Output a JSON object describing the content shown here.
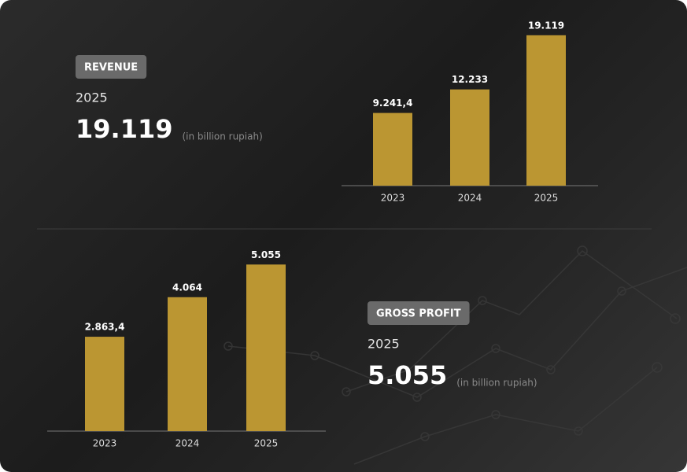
{
  "chart_data": [
    {
      "type": "bar",
      "title": "REVENUE",
      "unit": "(in billion rupiah)",
      "categories": [
        "2023",
        "2024",
        "2025"
      ],
      "values": [
        9241.4,
        12233,
        19119
      ],
      "value_labels": [
        "9.241,4",
        "12.233",
        "19.119"
      ],
      "color": "#bb9632",
      "ylim": [
        0,
        20000
      ]
    },
    {
      "type": "bar",
      "title": "GROSS PROFIT",
      "unit": "(in billion rupiah)",
      "categories": [
        "2023",
        "2024",
        "2025"
      ],
      "values": [
        2863.4,
        4064,
        5055
      ],
      "value_labels": [
        "2.863,4",
        "4.064",
        "5.055"
      ],
      "color": "#bb9632",
      "ylim": [
        0,
        5300
      ]
    }
  ]
}
